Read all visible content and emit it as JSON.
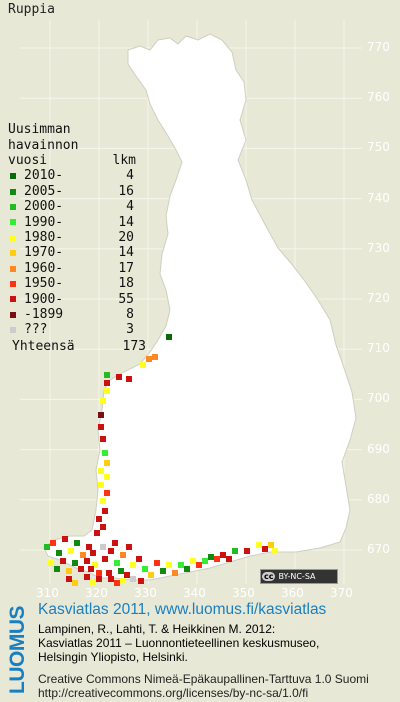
{
  "map": {
    "species": "Ruppia",
    "y_ticks": [
      "770",
      "760",
      "750",
      "740",
      "730",
      "720",
      "710",
      "700",
      "690",
      "680",
      "670"
    ],
    "x_ticks": [
      "310",
      "320",
      "330",
      "340",
      "350",
      "360",
      "370"
    ]
  },
  "legend": {
    "title_lines": [
      "Uusimman",
      "havainnon"
    ],
    "col_year": "vuosi",
    "col_count": "lkm",
    "rows": [
      {
        "label": "2010-",
        "count": "4",
        "color": "#0a6a0a"
      },
      {
        "label": "2005-",
        "count": "16",
        "color": "#128a12"
      },
      {
        "label": "2000-",
        "count": "4",
        "color": "#22bb22"
      },
      {
        "label": "1990-",
        "count": "14",
        "color": "#33ee33"
      },
      {
        "label": "1980-",
        "count": "20",
        "color": "#ffff22"
      },
      {
        "label": "1970-",
        "count": "14",
        "color": "#ffcc11"
      },
      {
        "label": "1960-",
        "count": "17",
        "color": "#ff8822"
      },
      {
        "label": "1950-",
        "count": "18",
        "color": "#ff3311"
      },
      {
        "label": "1900-",
        "count": "55",
        "color": "#cc1111"
      },
      {
        "label": "-1899",
        "count": "8",
        "color": "#771111"
      },
      {
        "label": "???",
        "count": "3",
        "color": "#cccccc"
      }
    ],
    "total_label": "Yhteensä",
    "total_value": "173"
  },
  "badge": {
    "cc": "cc",
    "text": "BY-NC-SA"
  },
  "brand": "LUOMUS",
  "credits": {
    "link": "Kasviatlas 2011, www.luomus.fi/kasviatlas",
    "ref_line1": "Lampinen, R., Lahti, T. & Heikkinen M. 2012:",
    "ref_line2": "Kasviatlas 2011 – Luonnontieteellinen keskusmuseo,",
    "ref_line3": "Helsingin Yliopisto, Helsinki.",
    "license_line1": "Creative Commons Nimeä-Epäkaupallinen-Tarttuva 1.0 Suomi",
    "license_line2": "http://creativecommons.org/licenses/by-nc-sa/1.0/fi"
  }
}
